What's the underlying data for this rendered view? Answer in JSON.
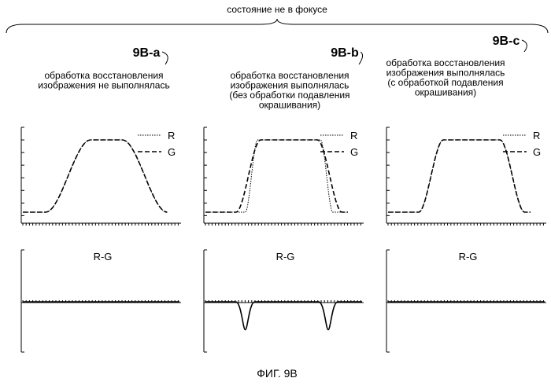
{
  "header": {
    "title": "состояние не в фокусе"
  },
  "figure_caption": "ФИГ. 9B",
  "legend": {
    "r": "R",
    "g": "G"
  },
  "diff_label": "R-G",
  "panels": [
    {
      "id": "9B-a",
      "desc": [
        "обработка восстановления",
        "изображения не выполнялась"
      ],
      "show_legend": true,
      "r_edges": [
        0.16,
        0.45,
        0.66,
        0.95
      ],
      "g_edges": [
        0.16,
        0.45,
        0.66,
        0.95
      ],
      "diff_dips": []
    },
    {
      "id": "9B-b",
      "desc": [
        "обработка восстановления",
        "изображения выполнялась",
        "(без обработки подавления",
        "окрашивания)"
      ],
      "show_legend": true,
      "r_edges": [
        0.27,
        0.35,
        0.76,
        0.84
      ],
      "g_edges": [
        0.21,
        0.37,
        0.74,
        0.9
      ],
      "diff_dips": [
        {
          "at": 0.27,
          "depth": 0.55
        },
        {
          "at": 0.81,
          "depth": 0.55
        }
      ]
    },
    {
      "id": "9B-c",
      "desc": [
        "обработка восстановления",
        "изображения выполнялась",
        "(с обработкой подавления",
        "окрашивания)"
      ],
      "show_legend": true,
      "r_edges": [
        0.21,
        0.37,
        0.74,
        0.9
      ],
      "g_edges": [
        0.21,
        0.37,
        0.74,
        0.9
      ],
      "diff_dips": []
    }
  ]
}
